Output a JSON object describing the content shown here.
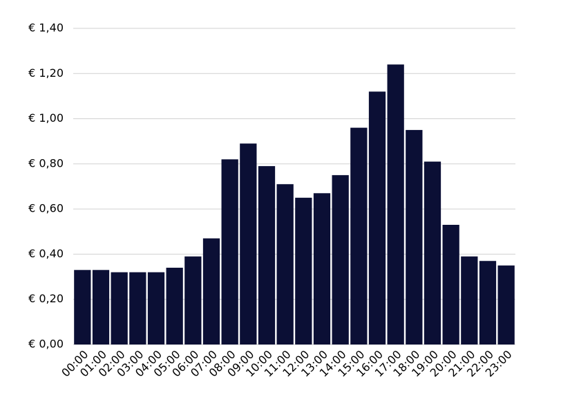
{
  "chart_data": {
    "type": "bar",
    "categories": [
      "00:00",
      "01:00",
      "02:00",
      "03:00",
      "04:00",
      "05:00",
      "06:00",
      "07:00",
      "08:00",
      "09:00",
      "10:00",
      "11:00",
      "12:00",
      "13:00",
      "14:00",
      "15:00",
      "16:00",
      "17:00",
      "18:00",
      "19:00",
      "20:00",
      "21:00",
      "22:00",
      "23:00"
    ],
    "values": [
      0.33,
      0.33,
      0.32,
      0.32,
      0.32,
      0.34,
      0.39,
      0.47,
      0.82,
      0.89,
      0.79,
      0.71,
      0.65,
      0.67,
      0.75,
      0.96,
      1.12,
      1.24,
      0.95,
      0.81,
      0.53,
      0.39,
      0.37,
      0.35
    ],
    "color": "#0b0f35",
    "ylim": [
      0,
      1.4
    ],
    "yticks": [
      {
        "value": 0,
        "label": "€ 0,00"
      },
      {
        "value": 0.2,
        "label": "€ 0,20"
      },
      {
        "value": 0.4,
        "label": "€ 0,40"
      },
      {
        "value": 0.6,
        "label": "€ 0,60"
      },
      {
        "value": 0.8,
        "label": "€ 0,80"
      },
      {
        "value": 1.0,
        "label": "€ 1,00"
      },
      {
        "value": 1.2,
        "label": "€ 1,20"
      },
      {
        "value": 1.4,
        "label": "€ 1,40"
      }
    ],
    "grid": true
  }
}
